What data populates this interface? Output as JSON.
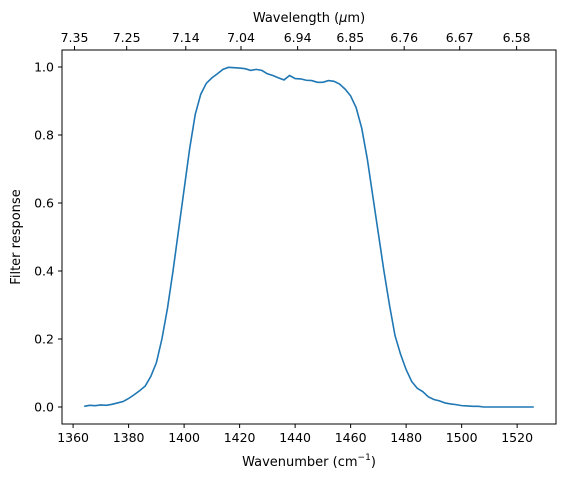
{
  "chart_data": {
    "type": "line",
    "xlabel": "Wavenumber (cm",
    "xlabel_sup": "−1",
    "xlabel_end": ")",
    "ylabel": "Filter response",
    "top_xlabel": "Wavelength (",
    "top_xlabel_mu": "μ",
    "top_xlabel_end": "m)",
    "xlim": [
      1356,
      1534
    ],
    "ylim": [
      -0.05,
      1.05
    ],
    "x_ticks": [
      1360,
      1380,
      1400,
      1420,
      1440,
      1460,
      1480,
      1500,
      1520
    ],
    "y_ticks": [
      0.0,
      0.2,
      0.4,
      0.6,
      0.8,
      1.0
    ],
    "x_tick_labels": [
      "1360",
      "1380",
      "1400",
      "1420",
      "1440",
      "1460",
      "1480",
      "1500",
      "1520"
    ],
    "y_tick_labels": [
      "0.0",
      "0.2",
      "0.4",
      "0.6",
      "0.8",
      "1.0"
    ],
    "top_ticks": [
      {
        "wavenumber": 1360.5,
        "label": "7.35"
      },
      {
        "wavenumber": 1379.3,
        "label": "7.25"
      },
      {
        "wavenumber": 1400.6,
        "label": "7.14"
      },
      {
        "wavenumber": 1420.5,
        "label": "7.04"
      },
      {
        "wavenumber": 1440.9,
        "label": "6.94"
      },
      {
        "wavenumber": 1459.9,
        "label": "6.85"
      },
      {
        "wavenumber": 1479.3,
        "label": "6.76"
      },
      {
        "wavenumber": 1499.3,
        "label": "6.67"
      },
      {
        "wavenumber": 1519.8,
        "label": "6.58"
      }
    ],
    "line_color": "#1f77b4",
    "series": [
      {
        "x": [
          1364,
          1366,
          1368,
          1370,
          1372,
          1374,
          1376,
          1378,
          1380,
          1382,
          1384,
          1386,
          1388,
          1390,
          1392,
          1394,
          1396,
          1398,
          1400,
          1402,
          1404,
          1406,
          1408,
          1410,
          1412,
          1414,
          1416,
          1418,
          1420,
          1422,
          1424,
          1426,
          1428,
          1430,
          1432,
          1434,
          1436,
          1438,
          1440,
          1442,
          1444,
          1446,
          1448,
          1450,
          1452,
          1454,
          1456,
          1458,
          1460,
          1462,
          1464,
          1466,
          1468,
          1470,
          1472,
          1474,
          1476,
          1478,
          1480,
          1482,
          1484,
          1486,
          1488,
          1490,
          1492,
          1494,
          1496,
          1498,
          1500,
          1502,
          1504,
          1506,
          1508,
          1510,
          1512,
          1514,
          1516,
          1518,
          1520,
          1522,
          1524,
          1526
        ],
        "y": [
          0.002,
          0.005,
          0.004,
          0.006,
          0.005,
          0.008,
          0.012,
          0.016,
          0.025,
          0.036,
          0.048,
          0.062,
          0.09,
          0.13,
          0.2,
          0.29,
          0.4,
          0.52,
          0.64,
          0.76,
          0.86,
          0.92,
          0.952,
          0.968,
          0.98,
          0.993,
          0.999,
          0.998,
          0.997,
          0.995,
          0.99,
          0.993,
          0.99,
          0.98,
          0.975,
          0.968,
          0.962,
          0.975,
          0.966,
          0.965,
          0.961,
          0.96,
          0.955,
          0.955,
          0.96,
          0.958,
          0.95,
          0.935,
          0.915,
          0.88,
          0.82,
          0.73,
          0.62,
          0.51,
          0.4,
          0.3,
          0.21,
          0.155,
          0.11,
          0.075,
          0.055,
          0.045,
          0.03,
          0.022,
          0.018,
          0.012,
          0.009,
          0.007,
          0.004,
          0.003,
          0.002,
          0.002,
          0.0,
          0.0,
          0.0,
          0.0,
          0.0,
          0.0,
          0.0,
          0.0,
          0.0,
          0.0
        ]
      }
    ]
  }
}
